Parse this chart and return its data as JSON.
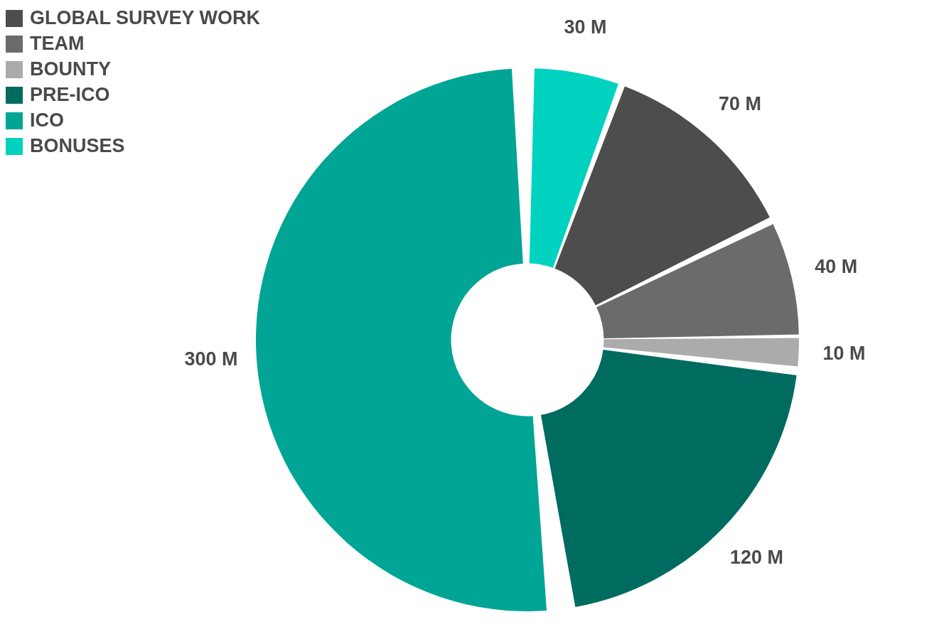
{
  "chart_data": {
    "type": "donut",
    "categories": [
      "GLOBAL SURVEY WORK",
      "TEAM",
      "BOUNTY",
      "PRE-ICO",
      "ICO",
      "BONUSES"
    ],
    "values": [
      70,
      40,
      10,
      120,
      300,
      30
    ],
    "colors": [
      "#4d4d4d",
      "#6b6b6b",
      "#ababab",
      "#006b5f",
      "#00a595",
      "#00d2c0"
    ],
    "value_labels": [
      "70 M",
      "40 M",
      "10 M",
      "120 M",
      "300 M",
      "30 M"
    ],
    "legend": "top left"
  }
}
